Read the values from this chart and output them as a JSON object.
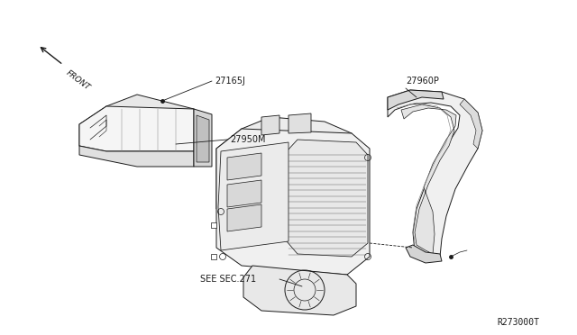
{
  "background_color": "#ffffff",
  "fig_width": 6.4,
  "fig_height": 3.72,
  "dpi": 100,
  "line_color": "#1a1a1a",
  "label_fontsize": 7.0,
  "line_width": 0.7,
  "front_label": "FRONT",
  "label_27165J": "27165J",
  "label_27950M": "27950M",
  "label_27960P": "27960P",
  "label_see_sec": "SEE SEC.271",
  "label_ref": "R273000T"
}
